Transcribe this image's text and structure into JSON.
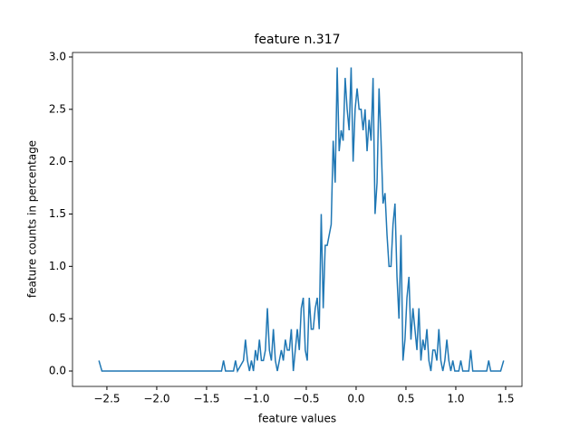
{
  "chart_data": {
    "type": "line",
    "title": "feature n.317",
    "xlabel": "feature values",
    "ylabel": "feature counts in percentage",
    "x": [
      -2.58,
      -2.55,
      -1.35,
      -1.33,
      -1.31,
      -1.23,
      -1.21,
      -1.19,
      -1.13,
      -1.11,
      -1.09,
      -1.07,
      -1.05,
      -1.03,
      -1.01,
      -0.99,
      -0.97,
      -0.95,
      -0.93,
      -0.91,
      -0.89,
      -0.87,
      -0.85,
      -0.83,
      -0.81,
      -0.79,
      -0.77,
      -0.75,
      -0.73,
      -0.71,
      -0.69,
      -0.67,
      -0.65,
      -0.63,
      -0.61,
      -0.59,
      -0.57,
      -0.55,
      -0.53,
      -0.51,
      -0.49,
      -0.47,
      -0.45,
      -0.43,
      -0.41,
      -0.39,
      -0.37,
      -0.35,
      -0.33,
      -0.31,
      -0.29,
      -0.27,
      -0.25,
      -0.23,
      -0.21,
      -0.19,
      -0.17,
      -0.15,
      -0.13,
      -0.11,
      -0.09,
      -0.07,
      -0.05,
      -0.03,
      -0.01,
      0.01,
      0.03,
      0.05,
      0.07,
      0.09,
      0.11,
      0.13,
      0.15,
      0.17,
      0.19,
      0.21,
      0.23,
      0.25,
      0.27,
      0.29,
      0.31,
      0.33,
      0.35,
      0.37,
      0.39,
      0.41,
      0.43,
      0.45,
      0.47,
      0.49,
      0.51,
      0.53,
      0.55,
      0.57,
      0.59,
      0.61,
      0.63,
      0.65,
      0.67,
      0.69,
      0.71,
      0.73,
      0.75,
      0.77,
      0.79,
      0.81,
      0.83,
      0.85,
      0.87,
      0.89,
      0.91,
      0.93,
      0.95,
      0.97,
      0.99,
      1.03,
      1.05,
      1.07,
      1.13,
      1.15,
      1.17,
      1.31,
      1.33,
      1.35,
      1.45,
      1.48
    ],
    "series": [
      {
        "name": "feature n.317",
        "color": "#1f77b4",
        "values": [
          0.1,
          0,
          0,
          0.1,
          0,
          0,
          0.1,
          0,
          0.1,
          0.3,
          0.1,
          0,
          0.1,
          0,
          0.2,
          0.1,
          0.3,
          0.1,
          0.1,
          0.2,
          0.6,
          0.2,
          0.1,
          0.4,
          0.1,
          0,
          0.1,
          0.2,
          0.1,
          0.3,
          0.2,
          0.2,
          0.4,
          0,
          0.2,
          0.4,
          0.2,
          0.6,
          0.7,
          0.2,
          0.1,
          0.7,
          0.4,
          0.4,
          0.6,
          0.7,
          0.4,
          1.5,
          0.6,
          1.2,
          1.2,
          1.3,
          1.4,
          2.2,
          1.8,
          2.9,
          2.1,
          2.3,
          2.2,
          2.8,
          2.5,
          2.3,
          2.9,
          2.0,
          2.5,
          2.7,
          2.5,
          2.5,
          2.3,
          2.5,
          2.1,
          2.4,
          2.2,
          2.8,
          1.5,
          1.8,
          2.7,
          2.2,
          1.6,
          1.7,
          1.3,
          1.0,
          1.0,
          1.4,
          1.6,
          0.9,
          0.5,
          1.3,
          0.1,
          0.3,
          0.7,
          0.9,
          0.3,
          0.6,
          0.4,
          0.2,
          0.6,
          0.1,
          0.3,
          0.2,
          0.4,
          0.1,
          0,
          0.2,
          0.2,
          0.1,
          0.4,
          0.1,
          0,
          0.1,
          0.3,
          0.1,
          0,
          0.1,
          0,
          0,
          0.1,
          0,
          0,
          0.2,
          0,
          0,
          0.1,
          0,
          0,
          0.1
        ]
      }
    ],
    "xlim": [
      -2.845,
      1.664
    ],
    "ylim": [
      -0.147,
      3.043
    ],
    "xticks": [
      {
        "value": -2.5,
        "label": "−2.5"
      },
      {
        "value": -2.0,
        "label": "−2.0"
      },
      {
        "value": -1.5,
        "label": "−1.5"
      },
      {
        "value": -1.0,
        "label": "−1.0"
      },
      {
        "value": -0.5,
        "label": "−0.5"
      },
      {
        "value": 0,
        "label": "0.0"
      },
      0.5,
      {
        "value": 1,
        "label": "1.0"
      },
      1.5
    ],
    "yticks": [
      {
        "value": 0,
        "label": "0.0"
      },
      0.5,
      {
        "value": 1,
        "label": "1.0"
      },
      1.5,
      {
        "value": 2,
        "label": "2.0"
      },
      2.5,
      {
        "value": 3,
        "label": "3.0"
      }
    ]
  }
}
